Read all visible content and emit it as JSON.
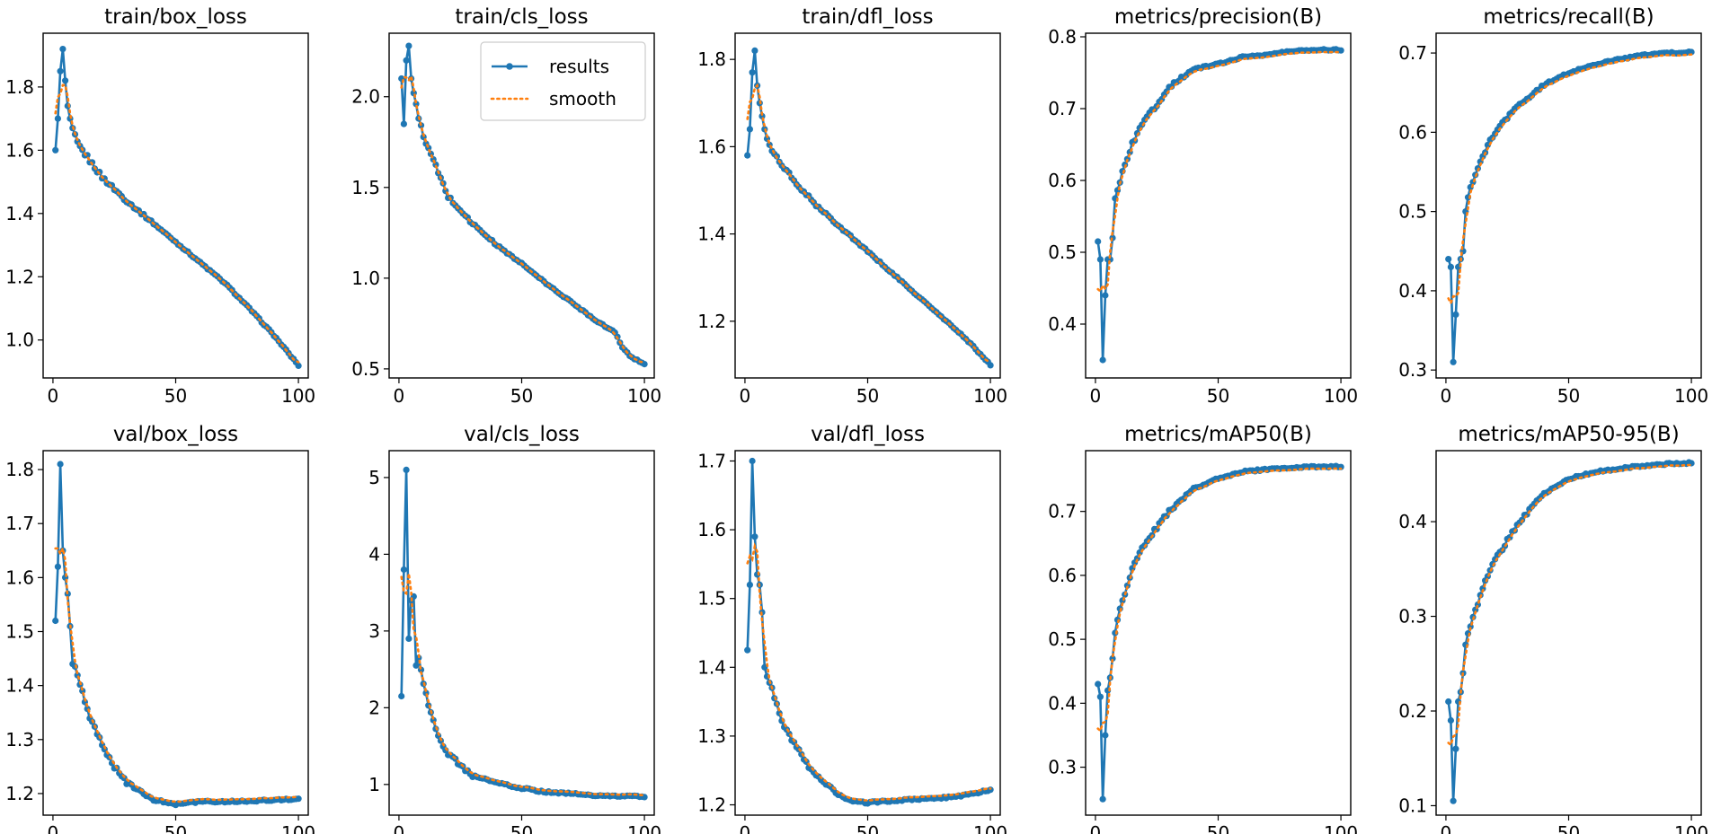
{
  "colors": {
    "results": "#1f77b4",
    "smooth": "#ff7f0e",
    "axis": "#000000",
    "background": "#ffffff"
  },
  "legend": {
    "results_label": "results",
    "smooth_label": "smooth",
    "placement": "upper right of train/cls_loss"
  },
  "chart_data": [
    {
      "type": "line",
      "title": "train/box_loss",
      "xlim": [
        -4,
        104
      ],
      "ylim": [
        0.88,
        1.97
      ],
      "xticks": [
        "0",
        "50",
        "100"
      ],
      "yticks": [
        "1.0",
        "1.2",
        "1.4",
        "1.6",
        "1.8"
      ],
      "x_range": [
        1,
        100
      ],
      "start": [
        1.6,
        1.7,
        1.85,
        1.92,
        1.82,
        1.74,
        1.7,
        1.67
      ],
      "key": [
        [
          8,
          1.67
        ],
        [
          10,
          1.62
        ],
        [
          20,
          1.515
        ],
        [
          30,
          1.44
        ],
        [
          40,
          1.375
        ],
        [
          50,
          1.31
        ],
        [
          60,
          1.245
        ],
        [
          70,
          1.18
        ],
        [
          80,
          1.1
        ],
        [
          90,
          1.015
        ],
        [
          100,
          0.92
        ]
      ],
      "smooth_offset": 0
    },
    {
      "type": "line",
      "title": "train/cls_loss",
      "xlim": [
        -4,
        104
      ],
      "ylim": [
        0.45,
        2.35
      ],
      "xticks": [
        "0",
        "50",
        "100"
      ],
      "yticks": [
        "0.5",
        "1.0",
        "1.5",
        "2.0"
      ],
      "x_range": [
        1,
        100
      ],
      "start": [
        2.1,
        1.85,
        2.2,
        2.28,
        2.1,
        2.02,
        1.96,
        1.88
      ],
      "key": [
        [
          8,
          1.88
        ],
        [
          10,
          1.78
        ],
        [
          20,
          1.45
        ],
        [
          30,
          1.3
        ],
        [
          40,
          1.18
        ],
        [
          50,
          1.08
        ],
        [
          60,
          0.97
        ],
        [
          70,
          0.87
        ],
        [
          80,
          0.77
        ],
        [
          88,
          0.7
        ],
        [
          91,
          0.62
        ],
        [
          95,
          0.56
        ],
        [
          100,
          0.53
        ]
      ],
      "smooth_offset": 0
    },
    {
      "type": "line",
      "title": "train/dfl_loss",
      "xlim": [
        -4,
        104
      ],
      "ylim": [
        1.07,
        1.86
      ],
      "xticks": [
        "0",
        "50",
        "100"
      ],
      "yticks": [
        "1.2",
        "1.4",
        "1.6",
        "1.8"
      ],
      "x_range": [
        1,
        100
      ],
      "start": [
        1.58,
        1.64,
        1.77,
        1.82,
        1.74,
        1.7,
        1.67,
        1.64
      ],
      "key": [
        [
          8,
          1.64
        ],
        [
          10,
          1.6
        ],
        [
          20,
          1.52
        ],
        [
          30,
          1.46
        ],
        [
          40,
          1.41
        ],
        [
          50,
          1.36
        ],
        [
          60,
          1.31
        ],
        [
          70,
          1.26
        ],
        [
          80,
          1.21
        ],
        [
          90,
          1.16
        ],
        [
          100,
          1.1
        ]
      ],
      "smooth_offset": 0
    },
    {
      "type": "line",
      "title": "metrics/precision(B)",
      "xlim": [
        -4,
        104
      ],
      "ylim": [
        0.325,
        0.805
      ],
      "xticks": [
        "0",
        "50",
        "100"
      ],
      "yticks": [
        "0.4",
        "0.5",
        "0.6",
        "0.7",
        "0.8"
      ],
      "x_range": [
        1,
        100
      ],
      "start": [
        0.515,
        0.49,
        0.35,
        0.44,
        0.49,
        0.49,
        0.52,
        0.575
      ],
      "key": [
        [
          8,
          0.575
        ],
        [
          10,
          0.6
        ],
        [
          15,
          0.65
        ],
        [
          20,
          0.685
        ],
        [
          25,
          0.705
        ],
        [
          30,
          0.73
        ],
        [
          40,
          0.755
        ],
        [
          50,
          0.762
        ],
        [
          60,
          0.772
        ],
        [
          70,
          0.775
        ],
        [
          80,
          0.78
        ],
        [
          90,
          0.782
        ],
        [
          100,
          0.782
        ]
      ],
      "smooth_offset": -0.003
    },
    {
      "type": "line",
      "title": "metrics/recall(B)",
      "xlim": [
        -4,
        104
      ],
      "ylim": [
        0.29,
        0.725
      ],
      "xticks": [
        "0",
        "50",
        "100"
      ],
      "yticks": [
        "0.3",
        "0.4",
        "0.5",
        "0.6",
        "0.7"
      ],
      "x_range": [
        1,
        100
      ],
      "start": [
        0.44,
        0.43,
        0.31,
        0.37,
        0.43,
        0.44,
        0.45,
        0.5
      ],
      "key": [
        [
          8,
          0.5
        ],
        [
          10,
          0.53
        ],
        [
          15,
          0.57
        ],
        [
          20,
          0.6
        ],
        [
          30,
          0.635
        ],
        [
          40,
          0.66
        ],
        [
          50,
          0.675
        ],
        [
          60,
          0.685
        ],
        [
          70,
          0.692
        ],
        [
          80,
          0.697
        ],
        [
          90,
          0.7
        ],
        [
          100,
          0.701
        ]
      ],
      "smooth_offset": -0.003
    },
    {
      "type": "line",
      "title": "val/box_loss",
      "xlim": [
        -4,
        104
      ],
      "ylim": [
        1.16,
        1.835
      ],
      "xticks": [
        "0",
        "50",
        "100"
      ],
      "yticks": [
        "1.2",
        "1.3",
        "1.4",
        "1.5",
        "1.6",
        "1.7",
        "1.8"
      ],
      "x_range": [
        1,
        100
      ],
      "start": [
        1.52,
        1.62,
        1.81,
        1.65,
        1.6,
        1.57,
        1.51,
        1.44
      ],
      "key": [
        [
          8,
          1.44
        ],
        [
          10,
          1.42
        ],
        [
          15,
          1.34
        ],
        [
          20,
          1.29
        ],
        [
          25,
          1.25
        ],
        [
          30,
          1.22
        ],
        [
          40,
          1.19
        ],
        [
          45,
          1.185
        ],
        [
          50,
          1.18
        ],
        [
          60,
          1.185
        ],
        [
          70,
          1.185
        ],
        [
          80,
          1.186
        ],
        [
          90,
          1.188
        ],
        [
          100,
          1.19
        ]
      ],
      "smooth_offset": 0.004
    },
    {
      "type": "line",
      "title": "val/cls_loss",
      "xlim": [
        -4,
        104
      ],
      "ylim": [
        0.6,
        5.35
      ],
      "xticks": [
        "0",
        "50",
        "100"
      ],
      "yticks": [
        "1",
        "2",
        "3",
        "4",
        "5"
      ],
      "x_range": [
        1,
        100
      ],
      "start": [
        2.15,
        3.8,
        5.1,
        2.9,
        3.4,
        3.45,
        2.55,
        2.65
      ],
      "key": [
        [
          8,
          2.65
        ],
        [
          10,
          2.3
        ],
        [
          15,
          1.7
        ],
        [
          20,
          1.4
        ],
        [
          25,
          1.25
        ],
        [
          30,
          1.12
        ],
        [
          40,
          1.02
        ],
        [
          50,
          0.95
        ],
        [
          60,
          0.9
        ],
        [
          70,
          0.88
        ],
        [
          80,
          0.86
        ],
        [
          90,
          0.85
        ],
        [
          100,
          0.84
        ]
      ],
      "smooth_offset": 0.02
    },
    {
      "type": "line",
      "title": "val/dfl_loss",
      "xlim": [
        -4,
        104
      ],
      "ylim": [
        1.185,
        1.715
      ],
      "xticks": [
        "0",
        "50",
        "100"
      ],
      "yticks": [
        "1.2",
        "1.3",
        "1.4",
        "1.5",
        "1.6",
        "1.7"
      ],
      "x_range": [
        1,
        100
      ],
      "start": [
        1.425,
        1.52,
        1.7,
        1.59,
        1.535,
        1.52,
        1.48,
        1.4
      ],
      "key": [
        [
          8,
          1.4
        ],
        [
          10,
          1.38
        ],
        [
          15,
          1.32
        ],
        [
          20,
          1.29
        ],
        [
          25,
          1.26
        ],
        [
          30,
          1.24
        ],
        [
          40,
          1.21
        ],
        [
          45,
          1.205
        ],
        [
          50,
          1.203
        ],
        [
          60,
          1.206
        ],
        [
          70,
          1.208
        ],
        [
          80,
          1.21
        ],
        [
          90,
          1.214
        ],
        [
          100,
          1.222
        ]
      ],
      "smooth_offset": 0.003
    },
    {
      "type": "line",
      "title": "metrics/mAP50(B)",
      "xlim": [
        -4,
        104
      ],
      "ylim": [
        0.225,
        0.795
      ],
      "xticks": [
        "0",
        "50",
        "100"
      ],
      "yticks": [
        "0.3",
        "0.4",
        "0.5",
        "0.6",
        "0.7"
      ],
      "x_range": [
        1,
        100
      ],
      "start": [
        0.43,
        0.41,
        0.25,
        0.35,
        0.42,
        0.44,
        0.47,
        0.51
      ],
      "key": [
        [
          8,
          0.51
        ],
        [
          10,
          0.55
        ],
        [
          15,
          0.61
        ],
        [
          20,
          0.65
        ],
        [
          30,
          0.7
        ],
        [
          40,
          0.735
        ],
        [
          50,
          0.752
        ],
        [
          60,
          0.762
        ],
        [
          70,
          0.766
        ],
        [
          80,
          0.768
        ],
        [
          90,
          0.77
        ],
        [
          100,
          0.77
        ]
      ],
      "smooth_offset": -0.003
    },
    {
      "type": "line",
      "title": "metrics/mAP50-95(B)",
      "xlim": [
        -4,
        104
      ],
      "ylim": [
        0.09,
        0.475
      ],
      "xticks": [
        "0",
        "50",
        "100"
      ],
      "yticks": [
        "0.1",
        "0.2",
        "0.3",
        "0.4"
      ],
      "x_range": [
        1,
        100
      ],
      "start": [
        0.21,
        0.19,
        0.105,
        0.16,
        0.21,
        0.22,
        0.24,
        0.27
      ],
      "key": [
        [
          8,
          0.27
        ],
        [
          10,
          0.29
        ],
        [
          15,
          0.33
        ],
        [
          20,
          0.36
        ],
        [
          30,
          0.4
        ],
        [
          40,
          0.43
        ],
        [
          50,
          0.445
        ],
        [
          60,
          0.452
        ],
        [
          70,
          0.456
        ],
        [
          80,
          0.459
        ],
        [
          90,
          0.461
        ],
        [
          100,
          0.462
        ]
      ],
      "smooth_offset": -0.002
    }
  ]
}
